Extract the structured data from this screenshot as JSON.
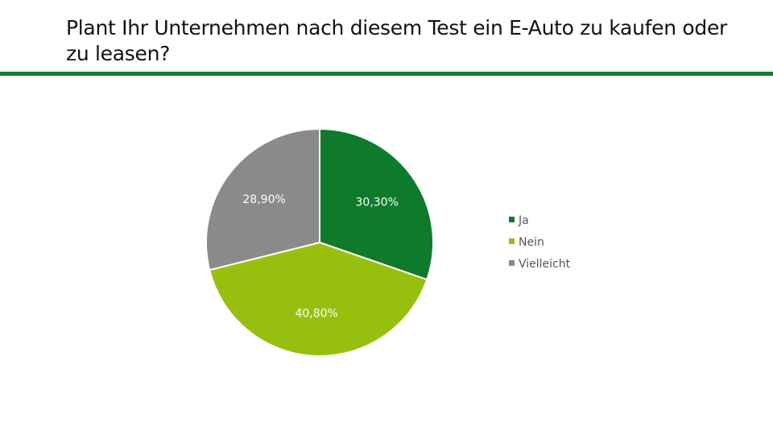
{
  "title": "Plant Ihr Unternehmen nach diesem Test ein E-Auto zu kaufen oder zu leasen?",
  "chart_data": {
    "type": "pie",
    "categories": [
      "Ja",
      "Nein",
      "Vielleicht"
    ],
    "values": [
      30.3,
      40.8,
      28.9
    ],
    "labels": [
      "30,30%",
      "40,80%",
      "28,90%"
    ],
    "colors": [
      "#0f7a2b",
      "#97c00e",
      "#8a8a8a"
    ],
    "start_angle_deg": 0,
    "direction": "clockwise",
    "legend": {
      "position": "right",
      "entries": [
        "Ja",
        "Nein",
        "Vielleicht"
      ]
    }
  }
}
